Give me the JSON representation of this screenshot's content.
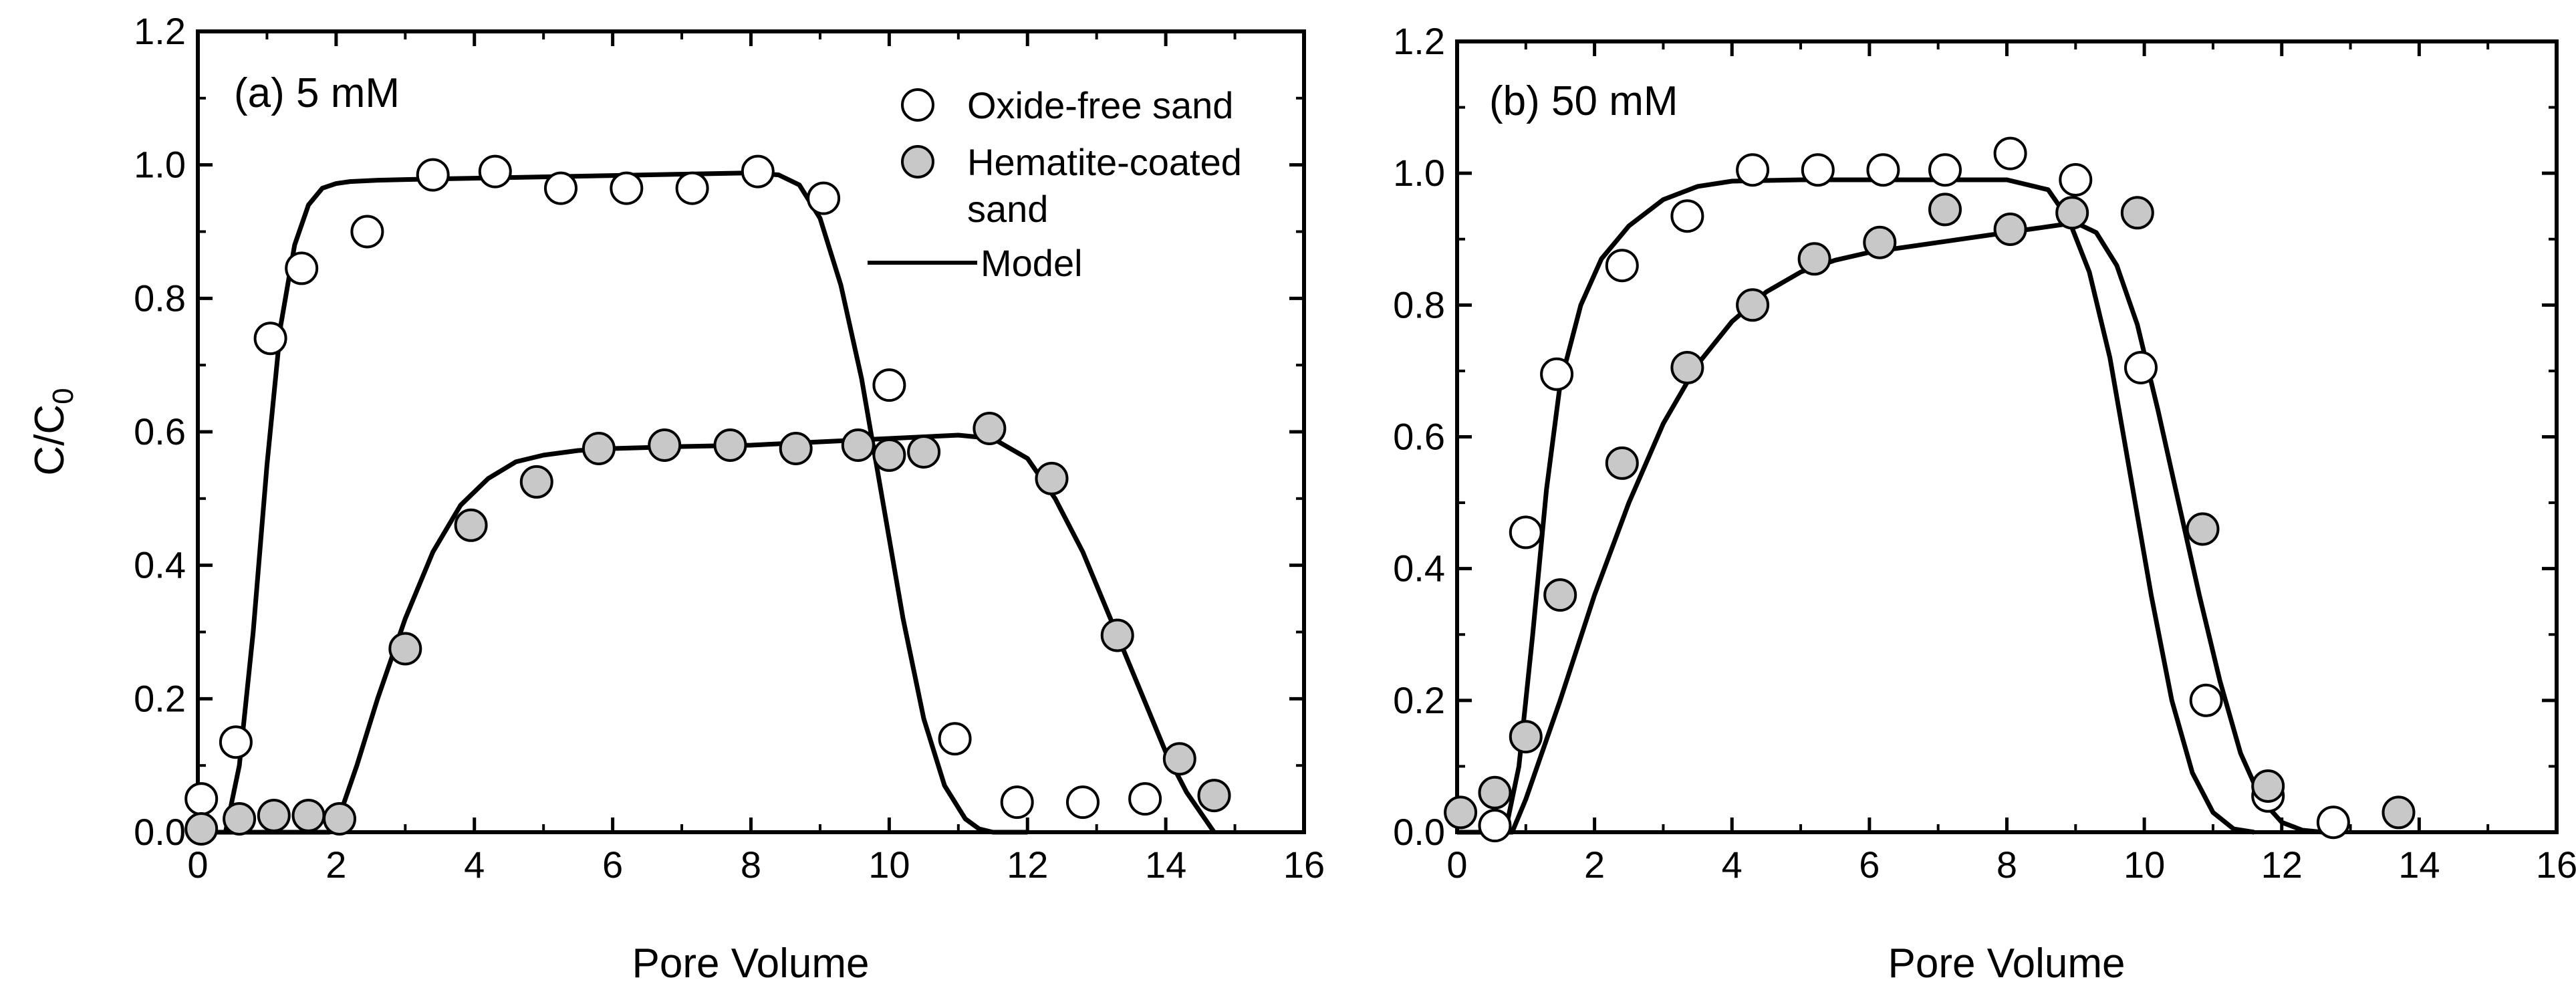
{
  "colors": {
    "axis": "#000000",
    "model_line": "#000000",
    "oxide_free_fill": "#ffffff",
    "hematite_fill": "#c8c8c8",
    "marker_edge": "#000000"
  },
  "chart_data": [
    {
      "type": "scatter",
      "panel_label": "(a) 5 mM",
      "xlabel": "Pore Volume",
      "ylabel_main": "C/C",
      "ylabel_sub": "0",
      "xlim": [
        0,
        16
      ],
      "ylim": [
        0,
        1.2
      ],
      "x_ticks": [
        "0",
        "2",
        "4",
        "6",
        "8",
        "10",
        "12",
        "14",
        "16"
      ],
      "y_ticks": [
        "0.0",
        "0.2",
        "0.4",
        "0.6",
        "0.8",
        "1.0",
        "1.2"
      ],
      "legend": {
        "placement": "top-right",
        "entries": [
          {
            "label": "Oxide-free sand",
            "marker": "open-circle"
          },
          {
            "label_line1": "Hematite-coated",
            "label_line2": "sand",
            "marker": "gray-circle"
          },
          {
            "label": "Model",
            "marker": "line"
          }
        ]
      },
      "series": [
        {
          "name": "Oxide-free sand",
          "marker": "open-circle",
          "x": [
            0.05,
            0.55,
            1.05,
            1.5,
            2.45,
            3.4,
            4.3,
            5.25,
            6.2,
            7.15,
            8.1,
            9.05,
            10.0,
            10.95,
            11.85,
            12.8,
            13.7
          ],
          "y": [
            0.05,
            0.135,
            0.74,
            0.845,
            0.9,
            0.985,
            0.99,
            0.965,
            0.965,
            0.965,
            0.99,
            0.95,
            0.67,
            0.14,
            0.045,
            0.045,
            0.05
          ]
        },
        {
          "name": "Hematite-coated sand",
          "marker": "gray-circle",
          "x": [
            0.05,
            0.6,
            1.1,
            1.6,
            2.05,
            3.0,
            3.95,
            4.9,
            5.8,
            6.75,
            7.7,
            8.65,
            9.55,
            10.0,
            10.5,
            11.45,
            12.35,
            13.3,
            14.2,
            14.7
          ],
          "y": [
            0.005,
            0.02,
            0.025,
            0.025,
            0.02,
            0.275,
            0.46,
            0.525,
            0.575,
            0.58,
            0.58,
            0.575,
            0.58,
            0.565,
            0.57,
            0.605,
            0.53,
            0.295,
            0.11,
            0.055
          ]
        },
        {
          "name": "Model",
          "marker": "line",
          "curves": [
            {
              "x": [
                0.0,
                0.4,
                0.6,
                0.8,
                1.0,
                1.2,
                1.4,
                1.6,
                1.8,
                2.0,
                2.2,
                2.6,
                3.0,
                4.0,
                5.0,
                6.0,
                7.0,
                8.0,
                8.4,
                8.7,
                9.0,
                9.3,
                9.6,
                9.9,
                10.2,
                10.5,
                10.8,
                11.1,
                11.3,
                11.5,
                12.0
              ],
              "y": [
                0.0,
                0.0,
                0.1,
                0.3,
                0.55,
                0.76,
                0.88,
                0.94,
                0.965,
                0.972,
                0.975,
                0.977,
                0.978,
                0.98,
                0.982,
                0.984,
                0.986,
                0.988,
                0.985,
                0.97,
                0.92,
                0.82,
                0.68,
                0.5,
                0.32,
                0.17,
                0.07,
                0.02,
                0.005,
                0.0,
                0.0
              ]
            },
            {
              "x": [
                0.0,
                1.9,
                2.1,
                2.3,
                2.6,
                3.0,
                3.4,
                3.8,
                4.2,
                4.6,
                5.0,
                5.5,
                6.0,
                7.0,
                8.0,
                9.0,
                10.0,
                11.0,
                11.5,
                12.0,
                12.4,
                12.8,
                13.2,
                13.6,
                14.0,
                14.3,
                14.5,
                14.7
              ],
              "y": [
                0.0,
                0.0,
                0.04,
                0.1,
                0.2,
                0.32,
                0.42,
                0.49,
                0.53,
                0.555,
                0.565,
                0.572,
                0.575,
                0.578,
                0.58,
                0.585,
                0.59,
                0.595,
                0.59,
                0.56,
                0.5,
                0.42,
                0.32,
                0.22,
                0.12,
                0.06,
                0.03,
                0.0
              ]
            }
          ]
        }
      ]
    },
    {
      "type": "scatter",
      "panel_label": "(b) 50 mM",
      "xlabel": "Pore Volume",
      "xlim": [
        0,
        16
      ],
      "ylim": [
        0,
        1.2
      ],
      "x_ticks": [
        "0",
        "2",
        "4",
        "6",
        "8",
        "10",
        "12",
        "14",
        "16"
      ],
      "y_ticks": [
        "0.0",
        "0.2",
        "0.4",
        "0.6",
        "0.8",
        "1.0",
        "1.2"
      ],
      "series": [
        {
          "name": "Oxide-free sand",
          "marker": "open-circle",
          "x": [
            0.55,
            1.0,
            1.45,
            2.4,
            3.35,
            4.3,
            5.25,
            6.2,
            7.1,
            8.05,
            9.0,
            9.95,
            10.9,
            11.8,
            12.75
          ],
          "y": [
            0.01,
            0.455,
            0.695,
            0.86,
            0.935,
            1.005,
            1.005,
            1.005,
            1.005,
            1.03,
            0.99,
            0.705,
            0.2,
            0.055,
            0.015
          ]
        },
        {
          "name": "Hematite-coated sand",
          "marker": "gray-circle",
          "x": [
            0.05,
            0.55,
            1.0,
            1.5,
            2.4,
            3.35,
            4.3,
            5.2,
            6.15,
            7.1,
            8.05,
            8.95,
            9.9,
            10.85,
            11.8,
            13.7
          ],
          "y": [
            0.03,
            0.06,
            0.145,
            0.36,
            0.56,
            0.705,
            0.8,
            0.87,
            0.895,
            0.945,
            0.915,
            0.94,
            0.94,
            0.46,
            0.07,
            0.03
          ]
        },
        {
          "name": "Model",
          "marker": "line",
          "curves": [
            {
              "x": [
                0.0,
                0.7,
                0.9,
                1.1,
                1.3,
                1.5,
                1.8,
                2.1,
                2.5,
                3.0,
                3.5,
                4.0,
                5.0,
                6.0,
                7.0,
                8.0,
                8.6,
                8.9,
                9.2,
                9.5,
                9.8,
                10.1,
                10.4,
                10.7,
                11.0,
                11.3,
                11.6
              ],
              "y": [
                0.0,
                0.0,
                0.1,
                0.3,
                0.52,
                0.68,
                0.8,
                0.87,
                0.92,
                0.96,
                0.98,
                0.988,
                0.99,
                0.99,
                0.99,
                0.99,
                0.975,
                0.93,
                0.85,
                0.72,
                0.54,
                0.36,
                0.2,
                0.09,
                0.03,
                0.005,
                0.0
              ]
            },
            {
              "x": [
                0.0,
                0.8,
                1.0,
                1.5,
                2.0,
                2.5,
                3.0,
                3.5,
                4.0,
                4.5,
                5.0,
                5.5,
                6.0,
                7.0,
                8.0,
                9.0,
                9.3,
                9.6,
                9.9,
                10.2,
                10.5,
                10.8,
                11.1,
                11.4,
                11.7,
                12.0,
                12.3,
                12.6
              ],
              "y": [
                0.0,
                0.0,
                0.05,
                0.2,
                0.36,
                0.5,
                0.62,
                0.71,
                0.775,
                0.82,
                0.85,
                0.868,
                0.88,
                0.895,
                0.91,
                0.925,
                0.91,
                0.86,
                0.77,
                0.64,
                0.5,
                0.36,
                0.23,
                0.12,
                0.05,
                0.015,
                0.003,
                0.0
              ]
            }
          ]
        }
      ]
    }
  ]
}
